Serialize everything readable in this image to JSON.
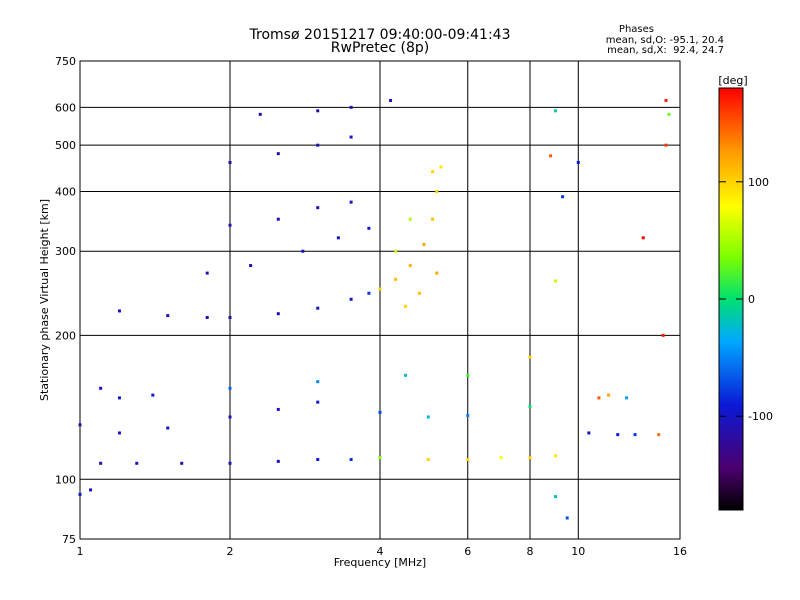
{
  "header": {
    "title_line1": "Tromsø 20151217 09:40:00-09:41:43",
    "title_line2": "RwPretec (8p)"
  },
  "phases_box": {
    "heading": "Phases",
    "line_o": "mean, sd,O: -95.1, 20.4",
    "line_x": "mean, sd,X:  92.4, 24.7"
  },
  "colorbar": {
    "unit_label": "[deg]",
    "range": [
      -180,
      180
    ],
    "ticks": [
      "100",
      "0",
      "-100"
    ],
    "tick_values": [
      100,
      0,
      -100
    ]
  },
  "chart_data": {
    "type": "scatter",
    "title": "Tromsø 20151217 09:40:00-09:41:43",
    "subtitle": "RwPretec (8p)",
    "xlabel": "Frequency [MHz]",
    "ylabel": "Stationary phase Virtual Height [km]",
    "xscale": "log",
    "yscale": "log",
    "xlim": [
      1,
      16
    ],
    "ylim": [
      75,
      750
    ],
    "xticks": [
      "1",
      "2",
      "4",
      "6",
      "8",
      "10",
      "16"
    ],
    "xtick_values": [
      1,
      2,
      4,
      6,
      8,
      10,
      16
    ],
    "yticks": [
      "75",
      "100",
      "200",
      "300",
      "400",
      "500",
      "600",
      "750"
    ],
    "ytick_values": [
      75,
      100,
      200,
      300,
      400,
      500,
      600,
      750
    ],
    "grid": true,
    "series": [
      {
        "points": [
          [
            1.0,
            93
          ],
          [
            1.05,
            95
          ],
          [
            1.1,
            108
          ],
          [
            1.3,
            108
          ],
          [
            1.6,
            108
          ],
          [
            2.0,
            108
          ],
          [
            2.5,
            109
          ],
          [
            3.0,
            110
          ],
          [
            3.5,
            110
          ],
          [
            4.0,
            111
          ],
          [
            5.0,
            110
          ],
          [
            6.0,
            110
          ],
          [
            7.0,
            111
          ],
          [
            8.0,
            111
          ],
          [
            9.0,
            112
          ],
          [
            1.0,
            130
          ],
          [
            1.2,
            125
          ],
          [
            1.5,
            128
          ],
          [
            2.0,
            135
          ],
          [
            2.5,
            140
          ],
          [
            3.0,
            145
          ],
          [
            4.0,
            138
          ],
          [
            5.0,
            135
          ],
          [
            6.0,
            136
          ],
          [
            8.0,
            142
          ],
          [
            1.2,
            225
          ],
          [
            1.5,
            220
          ],
          [
            1.8,
            218
          ],
          [
            2.0,
            218
          ],
          [
            2.5,
            222
          ],
          [
            3.0,
            228
          ],
          [
            3.5,
            238
          ],
          [
            3.8,
            245
          ],
          [
            4.0,
            250
          ],
          [
            4.3,
            262
          ],
          [
            4.6,
            280
          ],
          [
            4.9,
            310
          ],
          [
            5.1,
            350
          ],
          [
            5.2,
            400
          ],
          [
            5.3,
            450
          ],
          [
            1.8,
            270
          ],
          [
            2.2,
            280
          ],
          [
            2.8,
            300
          ],
          [
            3.3,
            320
          ],
          [
            3.8,
            335
          ],
          [
            2.0,
            340
          ],
          [
            2.5,
            350
          ],
          [
            3.0,
            370
          ],
          [
            3.5,
            380
          ],
          [
            2.0,
            460
          ],
          [
            2.5,
            480
          ],
          [
            3.0,
            500
          ],
          [
            3.5,
            520
          ],
          [
            2.3,
            580
          ],
          [
            3.0,
            590
          ],
          [
            3.5,
            600
          ],
          [
            4.2,
            620
          ],
          [
            1.1,
            155
          ],
          [
            1.2,
            148
          ],
          [
            1.4,
            150
          ],
          [
            2.0,
            155
          ],
          [
            3.0,
            160
          ],
          [
            4.5,
            165
          ],
          [
            6.0,
            165
          ],
          [
            8.0,
            180
          ],
          [
            4.3,
            300
          ],
          [
            4.6,
            350
          ],
          [
            5.1,
            440
          ],
          [
            4.5,
            230
          ],
          [
            4.8,
            245
          ],
          [
            5.2,
            270
          ],
          [
            11.0,
            148
          ],
          [
            11.5,
            150
          ],
          [
            12.5,
            148
          ],
          [
            10.5,
            125
          ],
          [
            12.0,
            124
          ],
          [
            13.0,
            124
          ],
          [
            14.5,
            124
          ],
          [
            9.0,
            590
          ],
          [
            15.0,
            620
          ],
          [
            15.0,
            500
          ],
          [
            15.2,
            580
          ],
          [
            13.5,
            320
          ],
          [
            9.0,
            260
          ],
          [
            9.3,
            390
          ],
          [
            10.0,
            460
          ],
          [
            9.5,
            83
          ],
          [
            9.0,
            92
          ],
          [
            8.8,
            475
          ],
          [
            14.8,
            200
          ]
        ],
        "phase": [
          -100,
          -100,
          -110,
          -110,
          -110,
          -105,
          -100,
          -90,
          -80,
          40,
          100,
          100,
          80,
          100,
          90,
          -110,
          -100,
          -100,
          -110,
          -100,
          -95,
          -70,
          -30,
          -50,
          0,
          -110,
          -110,
          -115,
          -115,
          -110,
          -105,
          -100,
          -80,
          100,
          110,
          115,
          120,
          110,
          100,
          90,
          -110,
          -110,
          -105,
          -100,
          -95,
          -110,
          -110,
          -105,
          -100,
          -110,
          -110,
          -105,
          -100,
          -110,
          -110,
          -105,
          -100,
          -100,
          -95,
          -90,
          -60,
          -50,
          -20,
          20,
          100,
          60,
          50,
          100,
          100,
          110,
          120,
          150,
          120,
          -40,
          -100,
          -90,
          -80,
          140,
          -10,
          170,
          160,
          30,
          180,
          60,
          -80,
          -90,
          -70,
          -20,
          150,
          170
        ]
      }
    ]
  }
}
